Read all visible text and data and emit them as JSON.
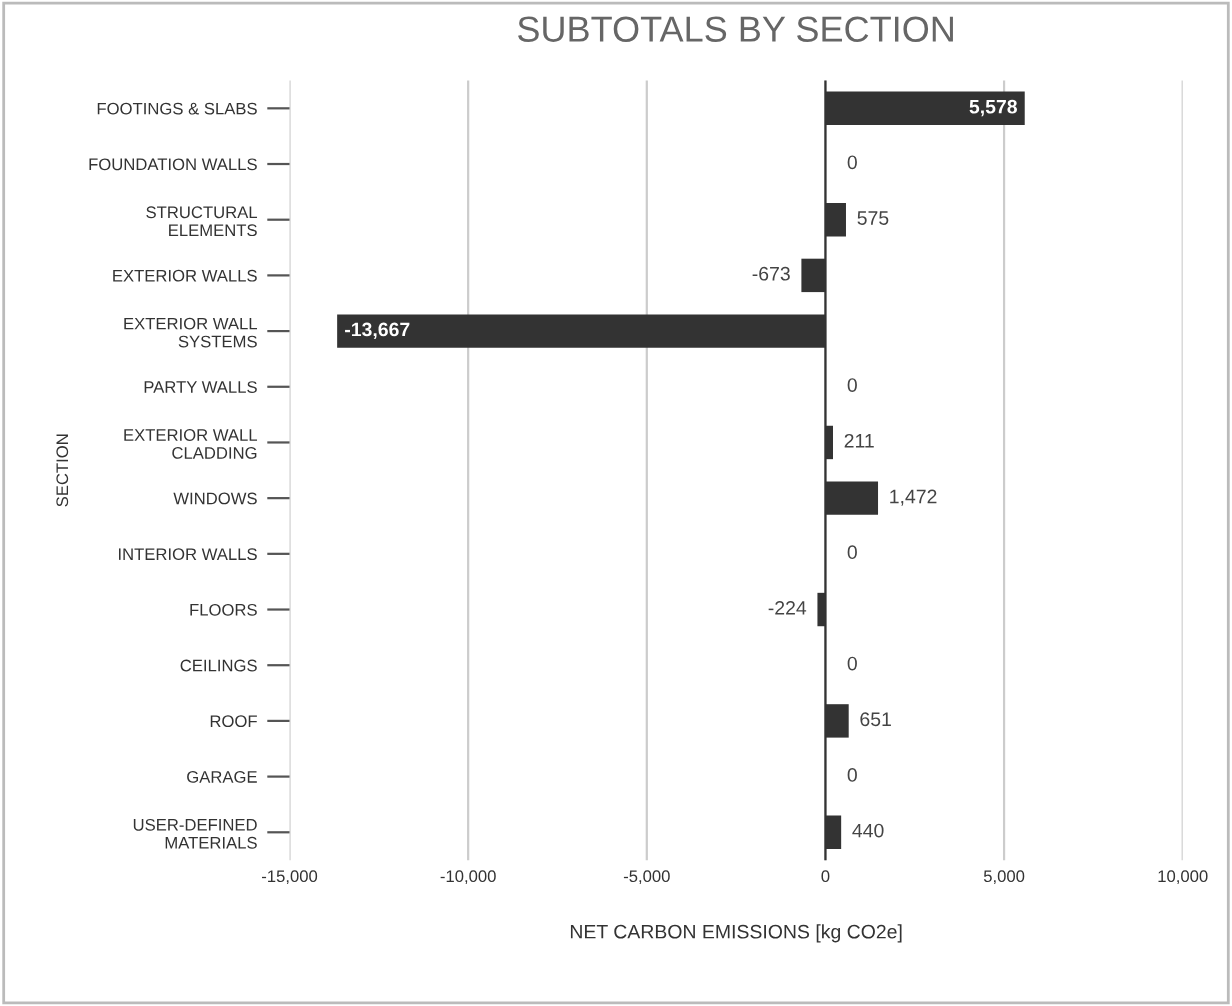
{
  "chart_data": {
    "type": "bar",
    "orientation": "horizontal",
    "title": "SUBTOTALS BY SECTION",
    "xlabel": "NET CARBON EMISSIONS [kg CO2e]",
    "ylabel": "SECTION",
    "categories": [
      "FOOTINGS & SLABS",
      "FOUNDATION WALLS",
      "STRUCTURAL\nELEMENTS",
      "EXTERIOR WALLS",
      "EXTERIOR WALL\nSYSTEMS",
      "PARTY WALLS",
      "EXTERIOR WALL\nCLADDING",
      "WINDOWS",
      "INTERIOR WALLS",
      "FLOORS",
      "CEILINGS",
      "ROOF",
      "GARAGE",
      "USER-DEFINED\nMATERIALS"
    ],
    "values": [
      5578,
      0,
      575,
      -673,
      -13667,
      0,
      211,
      1472,
      0,
      -224,
      0,
      651,
      0,
      440
    ],
    "value_labels": [
      "5,578",
      "0",
      "575",
      "-673",
      "-13,667",
      "0",
      "211",
      "1,472",
      "0",
      "-224",
      "0",
      "651",
      "0",
      "440"
    ],
    "color": "#333333",
    "xlim": [
      -15000,
      10000
    ],
    "xticks": [
      {
        "value": -15000,
        "label": "-15,000"
      },
      {
        "value": -10000,
        "label": "-10,000"
      },
      {
        "value": -5000,
        "label": "-5,000"
      },
      0,
      {
        "value": 5000,
        "label": "5,000"
      },
      {
        "value": 10000,
        "label": "10,000"
      }
    ],
    "grid": "x",
    "legend": false
  }
}
